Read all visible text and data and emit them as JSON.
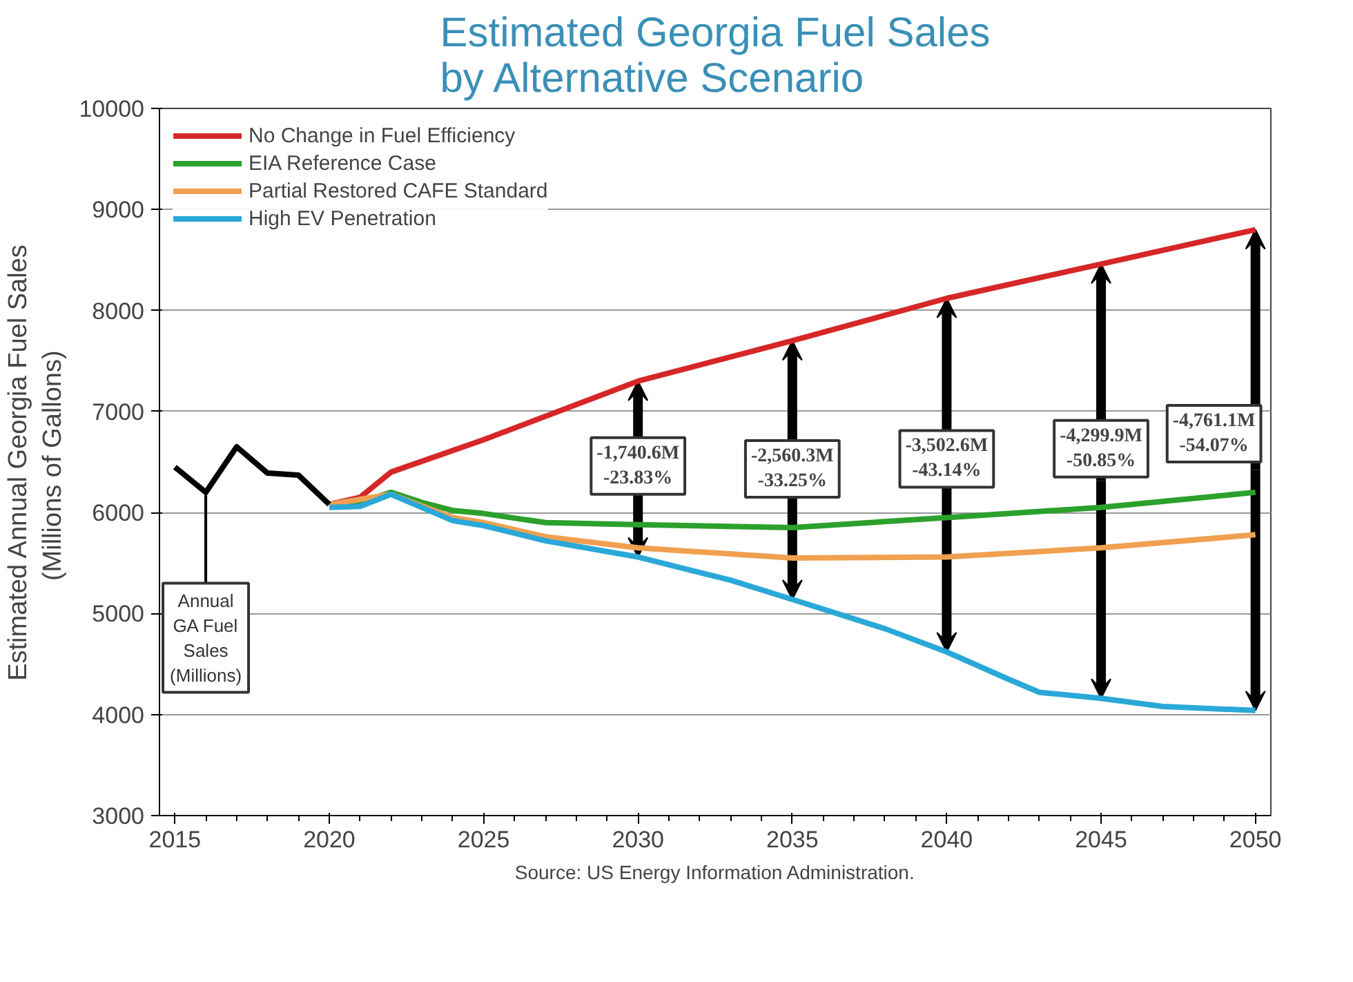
{
  "chart_data": {
    "type": "line",
    "title": "Estimated Georgia Fuel Sales by Alternative Scenario",
    "ylabel": "Estimated Annual Georgia Fuel Sales\n(Millions  of Gallons)",
    "xlim": [
      2014.5,
      2050.5
    ],
    "xticks": [
      2015,
      2020,
      2025,
      2030,
      2035,
      2040,
      2045,
      2050
    ],
    "ylim": [
      3000,
      10000
    ],
    "yticks": [
      3000,
      4000,
      5000,
      6000,
      7000,
      8000,
      9000,
      10000
    ],
    "grid": "y",
    "legend": "top left",
    "marker": "none",
    "line_style": "solid",
    "series": [
      {
        "name": "No Change in Fuel Efficiency",
        "color": "#d62728",
        "x": [
          2020,
          2021,
          2022,
          2025,
          2030,
          2035,
          2040,
          2045,
          2050
        ],
        "values": [
          6080,
          6150,
          6400,
          6720,
          7300,
          7700,
          8120,
          8460,
          8800
        ]
      },
      {
        "name": "EIA Reference Case",
        "color": "#2ca02c",
        "x": [
          2020,
          2021,
          2022,
          2023,
          2024,
          2025,
          2027,
          2030,
          2035,
          2040,
          2045,
          2050
        ],
        "values": [
          6080,
          6100,
          6200,
          6100,
          6020,
          5990,
          5900,
          5880,
          5850,
          5950,
          6050,
          6200
        ]
      },
      {
        "name": "Partial Restored CAFE Standard",
        "color": "#f0a050",
        "x": [
          2020,
          2022,
          2024,
          2025,
          2027,
          2030,
          2035,
          2040,
          2045,
          2050
        ],
        "values": [
          6080,
          6180,
          5950,
          5900,
          5760,
          5650,
          5550,
          5560,
          5650,
          5780
        ]
      },
      {
        "name": "High EV Penetration",
        "color": "#2aa8d8",
        "x": [
          2020,
          2021,
          2022,
          2023,
          2024,
          2025,
          2027,
          2030,
          2033,
          2035,
          2038,
          2040,
          2042,
          2043,
          2045,
          2047,
          2050
        ],
        "values": [
          6050,
          6060,
          6180,
          6050,
          5920,
          5870,
          5720,
          5560,
          5330,
          5140,
          4850,
          4620,
          4350,
          4220,
          4160,
          4080,
          4040
        ]
      },
      {
        "color": "#000000",
        "x": [
          2015,
          2016,
          2017,
          2018,
          2019,
          2020
        ],
        "values": [
          6450,
          6200,
          6650,
          6390,
          6370,
          6080
        ]
      }
    ],
    "annotations": [
      {
        "text": "Annual\nGA Fuel\nSales\n(Millions)",
        "x": 2016,
        "y": 6200
      },
      {
        "text": "-1,740.6M\n-23.83%",
        "x": 2030,
        "y": 7300
      },
      {
        "text": "-2,560.3M\n-33.25%",
        "x": 2035,
        "y": 7700
      },
      {
        "text": "-3,502.6M\n-43.14%",
        "x": 2040,
        "y": 8120
      },
      {
        "text": "-4,299.9M\n-50.85%",
        "x": 2045,
        "y": 8460
      },
      {
        "text": "-4,761.1M\n-54.07%",
        "x": 2050,
        "y": 8800
      },
      "Source: US Energy Information Administration."
    ]
  }
}
